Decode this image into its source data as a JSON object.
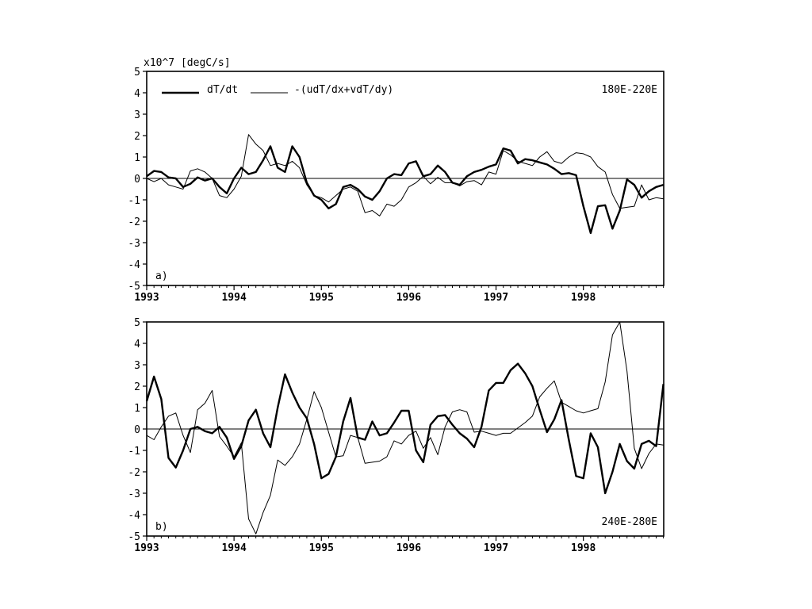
{
  "units_label": "x10^7 [degC/s]",
  "legend": {
    "series_1": "dT/dt",
    "series_2": "-(udT/dx+vdT/dy)"
  },
  "chart_data": [
    {
      "type": "line",
      "panel_label": "a)",
      "region": "180E-220E",
      "ylim": [
        -5,
        5
      ],
      "xlim": [
        1993.0,
        1998.92
      ],
      "x_ticks": [
        "1993",
        "1994",
        "1995",
        "1996",
        "1997",
        "1998"
      ],
      "y_ticks": [
        "5",
        "4",
        "3",
        "2",
        "1",
        "0",
        "-1",
        "-2",
        "-3",
        "-4",
        "-5"
      ],
      "zero_line": true,
      "x_start": 1993.0,
      "x_step_years": 0.0833333,
      "series": [
        {
          "name": "dT/dt",
          "style": "thick",
          "values": [
            0.1,
            0.35,
            0.3,
            0.05,
            0.0,
            -0.4,
            -0.25,
            0.05,
            -0.1,
            0.0,
            -0.4,
            -0.7,
            0.0,
            0.5,
            0.2,
            0.3,
            0.85,
            1.5,
            0.5,
            0.3,
            1.5,
            1.0,
            -0.2,
            -0.8,
            -1.0,
            -1.4,
            -1.2,
            -0.4,
            -0.3,
            -0.5,
            -0.85,
            -1.0,
            -0.6,
            0.0,
            0.2,
            0.15,
            0.7,
            0.8,
            0.1,
            0.2,
            0.6,
            0.3,
            -0.2,
            -0.3,
            0.1,
            0.3,
            0.4,
            0.55,
            0.65,
            1.4,
            1.3,
            0.7,
            0.9,
            0.85,
            0.75,
            0.65,
            0.45,
            0.2,
            0.25,
            0.15,
            -1.3,
            -2.55,
            -1.3,
            -1.25,
            -2.35,
            -1.5,
            -0.05,
            -0.3,
            -0.9,
            -0.6,
            -0.4,
            -0.3
          ]
        },
        {
          "name": "-(udT/dx+vdT/dy)",
          "style": "thin",
          "values": [
            0.0,
            -0.15,
            0.0,
            -0.3,
            -0.4,
            -0.5,
            0.35,
            0.45,
            0.3,
            0.0,
            -0.8,
            -0.9,
            -0.5,
            0.1,
            2.05,
            1.6,
            1.3,
            0.6,
            0.7,
            0.6,
            0.8,
            0.5,
            -0.3,
            -0.8,
            -0.9,
            -1.1,
            -0.8,
            -0.5,
            -0.4,
            -0.6,
            -1.6,
            -1.5,
            -1.75,
            -1.2,
            -1.3,
            -1.0,
            -0.4,
            -0.2,
            0.1,
            -0.25,
            0.05,
            -0.2,
            -0.2,
            -0.35,
            -0.15,
            -0.1,
            -0.3,
            0.3,
            0.2,
            1.3,
            1.1,
            0.8,
            0.7,
            0.6,
            1.0,
            1.25,
            0.8,
            0.7,
            1.0,
            1.2,
            1.15,
            1.0,
            0.55,
            0.3,
            -0.75,
            -1.4,
            -1.35,
            -1.3,
            -0.3,
            -1.0,
            -0.9,
            -0.95
          ]
        }
      ]
    },
    {
      "type": "line",
      "panel_label": "b)",
      "region": "240E-280E",
      "ylim": [
        -5,
        5
      ],
      "xlim": [
        1993.0,
        1998.92
      ],
      "x_ticks": [
        "1993",
        "1994",
        "1995",
        "1996",
        "1997",
        "1998"
      ],
      "y_ticks": [
        "5",
        "4",
        "3",
        "2",
        "1",
        "0",
        "-1",
        "-2",
        "-3",
        "-4",
        "-5"
      ],
      "zero_line": true,
      "x_start": 1993.0,
      "x_step_years": 0.0833333,
      "series": [
        {
          "name": "dT/dt",
          "style": "thick",
          "values": [
            1.3,
            2.45,
            1.4,
            -1.35,
            -1.8,
            -1.0,
            0.0,
            0.1,
            -0.1,
            -0.2,
            0.1,
            -0.4,
            -1.4,
            -0.8,
            0.4,
            0.9,
            -0.2,
            -0.85,
            1.0,
            2.55,
            1.7,
            1.0,
            0.5,
            -0.7,
            -2.3,
            -2.1,
            -1.3,
            0.35,
            1.45,
            -0.4,
            -0.5,
            0.35,
            -0.3,
            -0.2,
            0.3,
            0.85,
            0.85,
            -1.0,
            -1.55,
            0.2,
            0.6,
            0.65,
            0.2,
            -0.2,
            -0.45,
            -0.85,
            0.1,
            1.8,
            2.15,
            2.15,
            2.75,
            3.05,
            2.6,
            2.0,
            0.9,
            -0.15,
            0.45,
            1.35,
            -0.5,
            -2.2,
            -2.3,
            -0.2,
            -0.85,
            -3.0,
            -2.0,
            -0.7,
            -1.5,
            -1.85,
            -0.7,
            -0.55,
            -0.8,
            2.1
          ]
        },
        {
          "name": "-(udT/dx+vdT/dy)",
          "style": "thin",
          "values": [
            -0.3,
            -0.5,
            0.1,
            0.6,
            0.75,
            -0.3,
            -1.1,
            0.9,
            1.2,
            1.8,
            -0.35,
            -0.8,
            -1.3,
            -0.65,
            -4.2,
            -4.9,
            -3.9,
            -3.1,
            -1.45,
            -1.7,
            -1.3,
            -0.7,
            0.45,
            1.75,
            1.0,
            -0.15,
            -1.3,
            -1.25,
            -0.3,
            -0.4,
            -1.6,
            -1.55,
            -1.5,
            -1.3,
            -0.55,
            -0.7,
            -0.3,
            -0.1,
            -0.9,
            -0.4,
            -1.2,
            0.1,
            0.8,
            0.9,
            0.8,
            -0.15,
            -0.1,
            -0.2,
            -0.3,
            -0.2,
            -0.2,
            0.05,
            0.3,
            0.6,
            1.5,
            1.9,
            2.25,
            1.25,
            1.05,
            0.85,
            0.75,
            0.85,
            0.95,
            2.2,
            4.4,
            5.0,
            2.7,
            -0.9,
            -1.85,
            -1.15,
            -0.7,
            -0.75
          ]
        }
      ]
    }
  ]
}
